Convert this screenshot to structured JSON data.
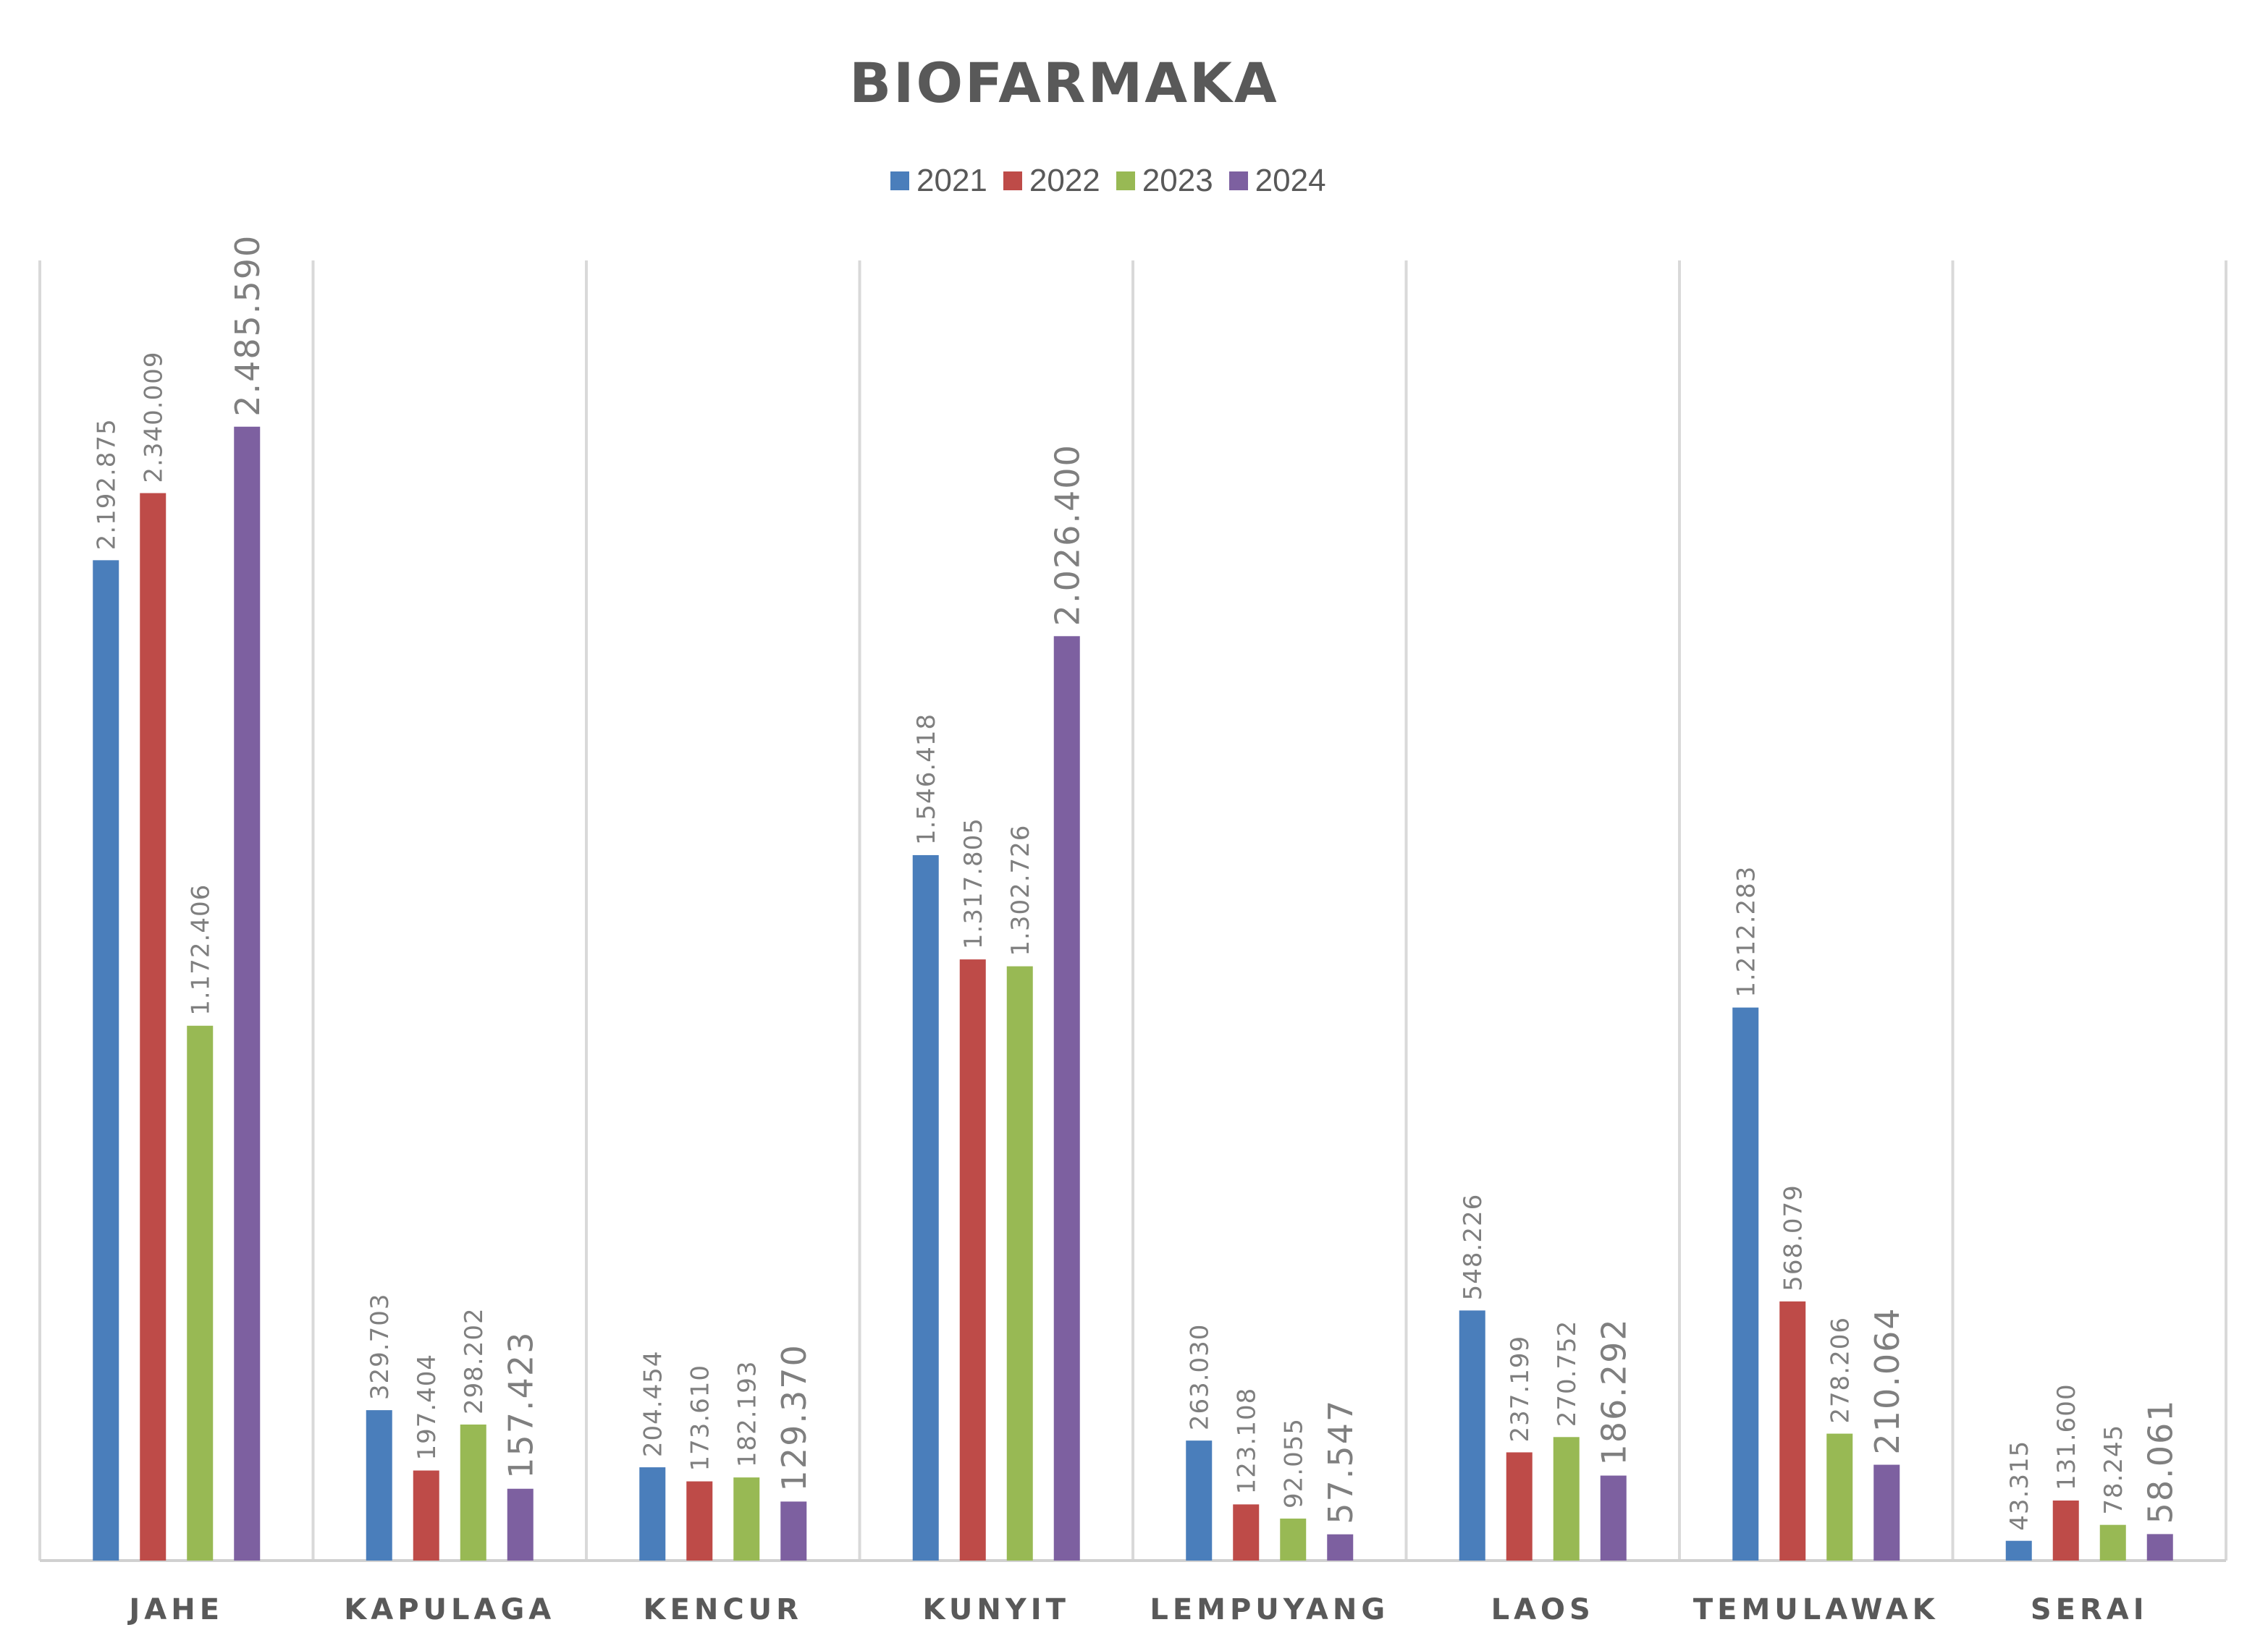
{
  "chart_data": {
    "type": "bar",
    "title": "BIOFARMAKA",
    "xlabel": "",
    "ylabel": "",
    "ylim": [
      0,
      2850000
    ],
    "grid": "vertical category separators",
    "legend_position": "top",
    "categories": [
      "JAHE",
      "KAPULAGA",
      "KENCUR",
      "KUNYIT",
      "LEMPUYANG",
      "LAOS",
      "TEMULAWAK",
      "SERAI"
    ],
    "series": [
      {
        "name": "2021",
        "color": "#4a7ebb",
        "values": [
          2192875,
          329703,
          204454,
          1546418,
          263030,
          548226,
          1212283,
          43315
        ],
        "labels": [
          "2.192.875",
          "329.703",
          "204.454",
          "1.546.418",
          "263.030",
          "548.226",
          "1.212.283",
          "43.315"
        ]
      },
      {
        "name": "2022",
        "color": "#be4b48",
        "values": [
          2340009,
          197404,
          173610,
          1317805,
          123108,
          237199,
          568079,
          131600
        ],
        "labels": [
          "2.340.009",
          "197.404",
          "173.610",
          "1.317.805",
          "123.108",
          "237.199",
          "568.079",
          "131.600"
        ]
      },
      {
        "name": "2023",
        "color": "#98b954",
        "values": [
          1172406,
          298202,
          182193,
          1302726,
          92055,
          270752,
          278206,
          78245
        ],
        "labels": [
          "1.172.406",
          "298.202",
          "182.193",
          "1.302.726",
          "92.055",
          "270.752",
          "278.206",
          "78.245"
        ]
      },
      {
        "name": "2024",
        "color": "#7d60a0",
        "values": [
          2485590,
          157423,
          129370,
          2026400,
          57547,
          186292,
          210064,
          58061
        ],
        "labels": [
          "2.485.590",
          "157.423",
          "129.370",
          "2.026.400",
          "57.547",
          "186.292",
          "210.064",
          "58.061"
        ]
      }
    ]
  }
}
